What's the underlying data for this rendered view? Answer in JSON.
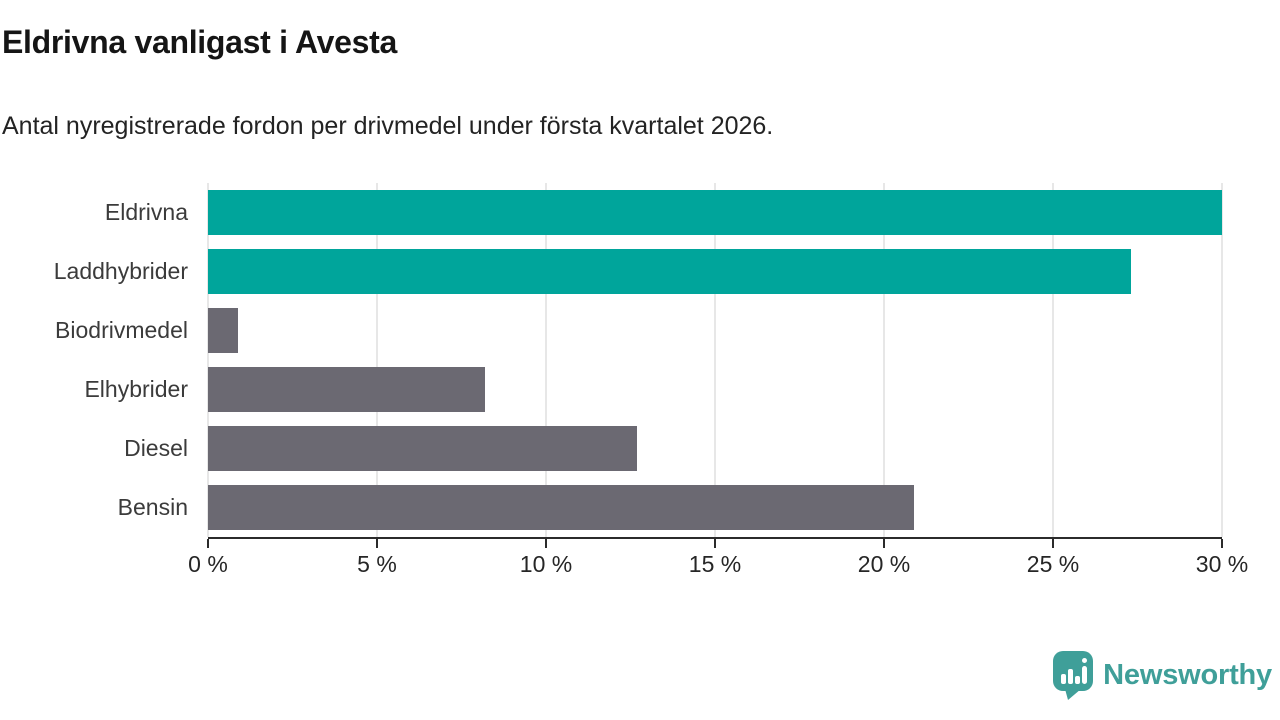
{
  "title": "Eldrivna vanligast i Avesta",
  "subtitle": "Antal nyregistrerade fordon per drivmedel under första kvartalet 2026.",
  "chart_data": {
    "type": "bar",
    "orientation": "horizontal",
    "title": "Eldrivna vanligast i Avesta",
    "subtitle": "Antal nyregistrerade fordon per drivmedel under första kvartalet 2026.",
    "categories": [
      "Eldrivna",
      "Laddhybrider",
      "Biodrivmedel",
      "Elhybrider",
      "Diesel",
      "Bensin"
    ],
    "values": [
      30.0,
      27.3,
      0.9,
      8.2,
      12.7,
      20.9
    ],
    "unit": "%",
    "xlabel": "",
    "ylabel": "",
    "xlim": [
      0,
      30
    ],
    "tick_values": [
      0,
      5,
      10,
      15,
      20,
      25,
      30
    ],
    "tick_labels": [
      "0 %",
      "5 %",
      "10 %",
      "15 %",
      "20 %",
      "25 %",
      "30 %"
    ],
    "grid": true,
    "legend_position": "none",
    "highlighted": [
      true,
      true,
      false,
      false,
      false,
      false
    ],
    "highlight_color": "#00a59b",
    "default_color": "#6b6972"
  },
  "branding": {
    "logo_text": "Newsworthy",
    "logo_color": "#3f9f99",
    "logo_icon": "newsworthy-speech-bubble-bar-chart-icon"
  }
}
